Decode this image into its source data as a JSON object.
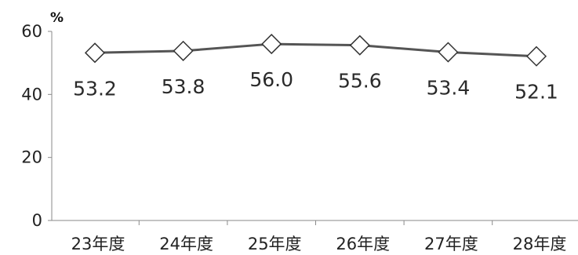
{
  "chart_data": {
    "type": "line",
    "title": "",
    "xlabel": "",
    "ylabel": "%",
    "categories": [
      "23年度",
      "24年度",
      "25年度",
      "26年度",
      "27年度",
      "28年度"
    ],
    "series": [
      {
        "values": [
          53.2,
          53.8,
          56.0,
          55.6,
          53.4,
          52.1
        ],
        "labels": [
          "53.2",
          "53.8",
          "56.0",
          "55.6",
          "53.4",
          "52.1"
        ]
      }
    ],
    "ylim": [
      0,
      60
    ],
    "yticks": [
      "0",
      "20",
      "40",
      "60"
    ],
    "grid": false,
    "legend": "none",
    "marker": "diamond",
    "line_color": "#555555",
    "marker_fill": "#ffffff"
  }
}
